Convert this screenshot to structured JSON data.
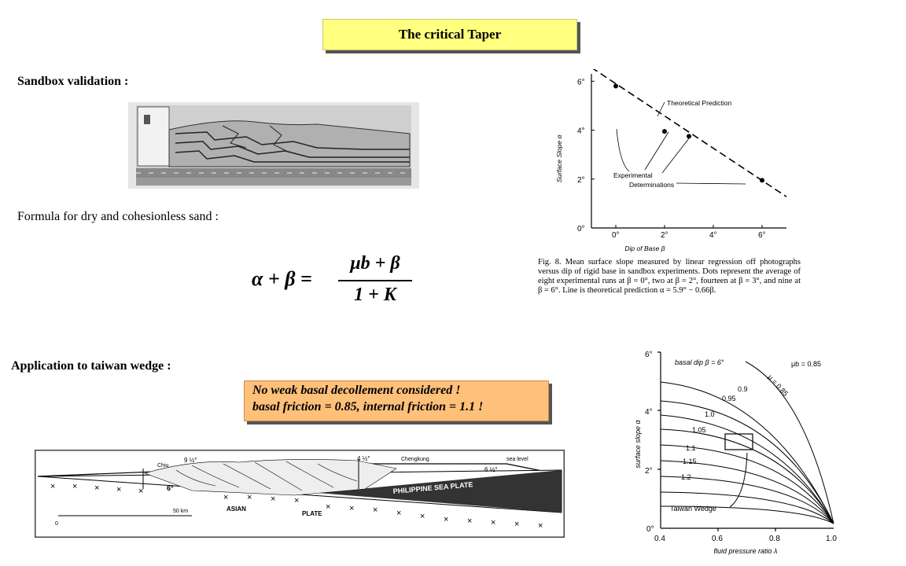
{
  "title": "The critical Taper",
  "headings": {
    "sandbox": "Sandbox validation :",
    "formula": "Formula for dry and cohesionless sand :",
    "application": "Application to taiwan wedge :"
  },
  "formula": {
    "lhs": "α + β =",
    "numerator": "μb + β",
    "denominator": "1 + K"
  },
  "note": {
    "line1": "No weak basal decollement considered !",
    "line2": "basal friction = 0.85, internal friction = 1.1 !"
  },
  "figure8": {
    "ylabel": "Surface Slope α",
    "xlabel": "Dip of Base β",
    "yticks": [
      "0°",
      "2°",
      "4°",
      "6°"
    ],
    "xticks": [
      "0°",
      "2°",
      "4°",
      "6°"
    ],
    "ann_theory": "Theoretical Prediction",
    "ann_exp1": "Experimental",
    "ann_exp2": "Determinations",
    "caption": "Fig. 8.   Mean surface slope measured by linear regression off photographs versus dip of rigid base in sandbox experiments. Dots represent the average of eight experimental runs at β = 0°, two at β = 2°, fourteen at β = 3°, and nine at β = 6°. Line is theoretical prediction α = 5.9° − 0.66β."
  },
  "chart_data": {
    "type": "scatter",
    "title": "",
    "xlabel": "Dip of Base β",
    "ylabel": "Surface Slope α",
    "xlim": [
      -1,
      7
    ],
    "ylim": [
      0,
      6.3
    ],
    "points": [
      {
        "x": 0,
        "y": 5.8
      },
      {
        "x": 2,
        "y": 3.95
      },
      {
        "x": 3,
        "y": 3.75
      },
      {
        "x": 6,
        "y": 1.95
      }
    ],
    "line": {
      "x": [
        -1,
        7
      ],
      "y": [
        6.56,
        1.28
      ]
    }
  },
  "wedgeChart": {
    "ylabel": "surface slope α",
    "xlabel": "fluid pressure ratio λ",
    "yticks": [
      "0°",
      "2°",
      "4°",
      "6°"
    ],
    "xticks": [
      "0.4",
      "0.6",
      "0.8",
      "1.0"
    ],
    "header": "basal dip β = 6°",
    "mub": "μb = 0.85",
    "mu_label": "μ = 0.85",
    "curve_labels": [
      "0.9",
      "0.95",
      "1.0",
      "1.05",
      "1.1",
      "1.15",
      "1.2"
    ],
    "wedge_label": "Taiwan Wedge"
  },
  "section": {
    "labels": {
      "chiu": "Chiu",
      "cheng": "Chengkung",
      "sea": "sea level",
      "ang1": "9 ½°",
      "ang2": "4 ½°",
      "ang3": "6 ½°",
      "six": "6°",
      "ps": "PHILIPPINE SEA PLATE",
      "asian": "ASIAN",
      "plate": "PLATE",
      "scale0": "0",
      "scale": "50 km"
    }
  }
}
